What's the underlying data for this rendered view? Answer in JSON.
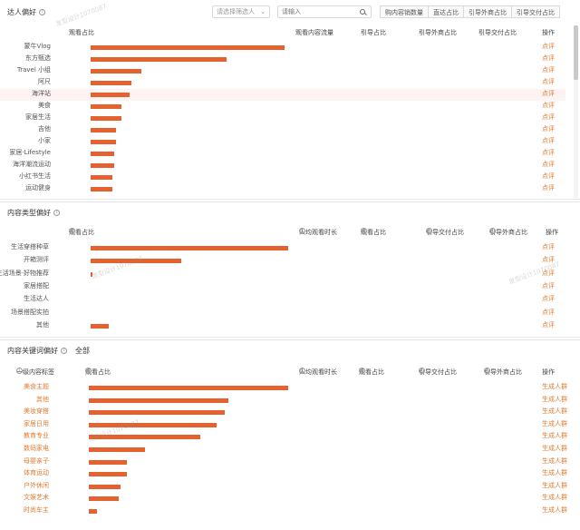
{
  "section1": {
    "title": "达人偏好",
    "select_placeholder": "请选择筛选人",
    "search_placeholder": "请输入",
    "tabs": [
      "购内容销数量",
      "直达占比",
      "引导外商占比",
      "引导交付占比"
    ],
    "columns": {
      "name": "观看占比",
      "c2": "观看内容流量",
      "c3": "引导占比",
      "c4": "引导外商占比",
      "c5": "引导交付占比",
      "op": "操作"
    },
    "rows": [
      {
        "name": "蒙牛Vlog",
        "value": 100,
        "op": "点评"
      },
      {
        "name": "东方甄选",
        "value": 70,
        "op": "点评"
      },
      {
        "name": "Travel 小组",
        "value": 26,
        "op": "点评"
      },
      {
        "name": "阿尺",
        "value": 21,
        "op": "点评"
      },
      {
        "name": "海洋站",
        "value": 20,
        "op": "点评"
      },
      {
        "name": "美食",
        "value": 16,
        "op": "点评"
      },
      {
        "name": "家居生活",
        "value": 16,
        "op": "点评"
      },
      {
        "name": "吉他",
        "value": 13,
        "op": "点评"
      },
      {
        "name": "小家",
        "value": 13,
        "op": "点评"
      },
      {
        "name": "家居·Lifestyle",
        "value": 12,
        "op": "点评"
      },
      {
        "name": "海洋潮流运动",
        "value": 12,
        "op": "点评"
      },
      {
        "name": "小红书生活",
        "value": 11,
        "op": "点评"
      },
      {
        "name": "运动健身",
        "value": 11,
        "op": "点评"
      }
    ]
  },
  "section2": {
    "title": "内容类型偏好",
    "columns": {
      "name": "观看占比",
      "c2": "人均观看时长",
      "c3": "观看占比",
      "c4": "引导交付占比",
      "c5": "引导外商占比",
      "op": "操作"
    },
    "rows": [
      {
        "name": "生活穿搭种草",
        "value": 100,
        "op": "点评"
      },
      {
        "name": "开箱测评",
        "value": 46,
        "op": "点评"
      },
      {
        "name": "生活场景·好物推荐",
        "value": 1,
        "op": "点评"
      },
      {
        "name": "家居搭配",
        "value": 0,
        "op": "点评"
      },
      {
        "name": "生活达人",
        "value": 0,
        "op": "点评"
      },
      {
        "name": "场景搭配实拍",
        "value": 0,
        "op": "点评"
      },
      {
        "name": "其他",
        "value": 9,
        "op": "点评"
      }
    ]
  },
  "section3": {
    "title": "内容关键词偏好",
    "title_extra": "全部",
    "columns": {
      "name": "一级内容标签",
      "c1": "观看占比",
      "c2": "人均观看时长",
      "c3": "观看占比",
      "c4": "引导交付占比",
      "c5": "引导外商占比",
      "op": "操作"
    },
    "rows": [
      {
        "name": "美食主题",
        "value": 100,
        "op": "生成人群"
      },
      {
        "name": "其他",
        "value": 70,
        "op": "生成人群"
      },
      {
        "name": "美妆穿搭",
        "value": 68,
        "op": "生成人群"
      },
      {
        "name": "家居日用",
        "value": 64,
        "op": "生成人群"
      },
      {
        "name": "教育专业",
        "value": 56,
        "op": "生成人群"
      },
      {
        "name": "数码家电",
        "value": 28,
        "op": "生成人群"
      },
      {
        "name": "母婴亲子",
        "value": 19,
        "op": "生成人群"
      },
      {
        "name": "体育运动",
        "value": 19,
        "op": "生成人群"
      },
      {
        "name": "户外休闲",
        "value": 16,
        "op": "生成人群"
      },
      {
        "name": "文娱艺术",
        "value": 15,
        "op": "生成人群"
      },
      {
        "name": "时尚车主",
        "value": 4,
        "op": "生成人群"
      }
    ]
  },
  "watermarks": [
    "发型设计1070087",
    "发型设计1070087",
    "发型设计1070087",
    "发型设计1070087"
  ]
}
